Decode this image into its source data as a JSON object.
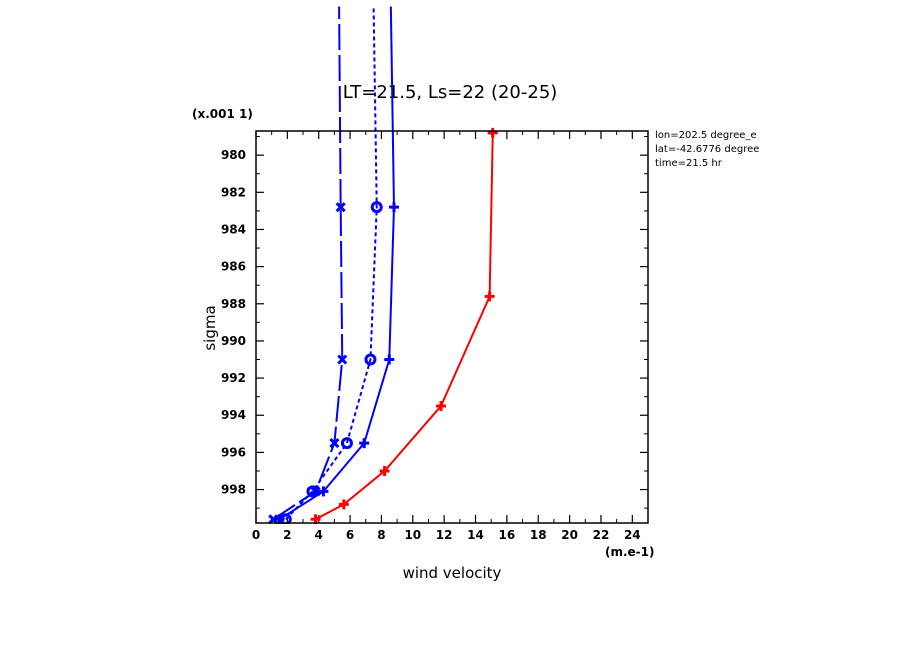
{
  "colors": {
    "blue": "#0000ff",
    "red": "#ff0000",
    "axis": "#000000"
  },
  "chart_data": {
    "type": "line",
    "title": "LT=21.5, Ls=22 (20-25)",
    "xlabel": "wind velocity",
    "ylabel": "sigma",
    "x_units": "(m.e-1)",
    "y_scale_note": "(x.001 1)",
    "xlim": [
      0,
      25
    ],
    "ylim": [
      999.8,
      978.7
    ],
    "x_ticks": [
      "0",
      "2",
      "4",
      "6",
      "8",
      "10",
      "12",
      "14",
      "16",
      "18",
      "20",
      "22",
      "24"
    ],
    "y_ticks": [
      "980",
      "982",
      "984",
      "986",
      "988",
      "990",
      "992",
      "994",
      "996",
      "998"
    ],
    "info": [
      "lon=202.5 degree_e",
      "lat=-42.6776 degree",
      "time=21.5 hr"
    ],
    "series": [
      {
        "color": "#0000ff",
        "style": "long-dash",
        "marker": "x",
        "x": [
          1.1,
          3.8,
          5.0,
          5.5,
          5.4,
          5.3
        ],
        "y": [
          999.6,
          998.1,
          995.5,
          991.0,
          982.8,
          972.0
        ]
      },
      {
        "color": "#0000ff",
        "style": "dotted",
        "marker": "o",
        "x": [
          1.9,
          3.6,
          5.8,
          7.3,
          7.7,
          7.5
        ],
        "y": [
          999.6,
          998.1,
          995.5,
          991.0,
          982.8,
          972.0
        ]
      },
      {
        "color": "#0000ff",
        "style": "solid",
        "marker": "+",
        "x": [
          1.5,
          4.3,
          6.9,
          8.5,
          8.8,
          8.6
        ],
        "y": [
          999.6,
          998.1,
          995.5,
          991.0,
          982.8,
          972.0
        ]
      },
      {
        "color": "#ff0000",
        "style": "solid",
        "marker": "+",
        "x": [
          3.8,
          5.6,
          8.2,
          11.8,
          14.9,
          15.1
        ],
        "y": [
          999.6,
          998.8,
          997.0,
          993.5,
          987.6,
          978.8
        ]
      }
    ]
  }
}
